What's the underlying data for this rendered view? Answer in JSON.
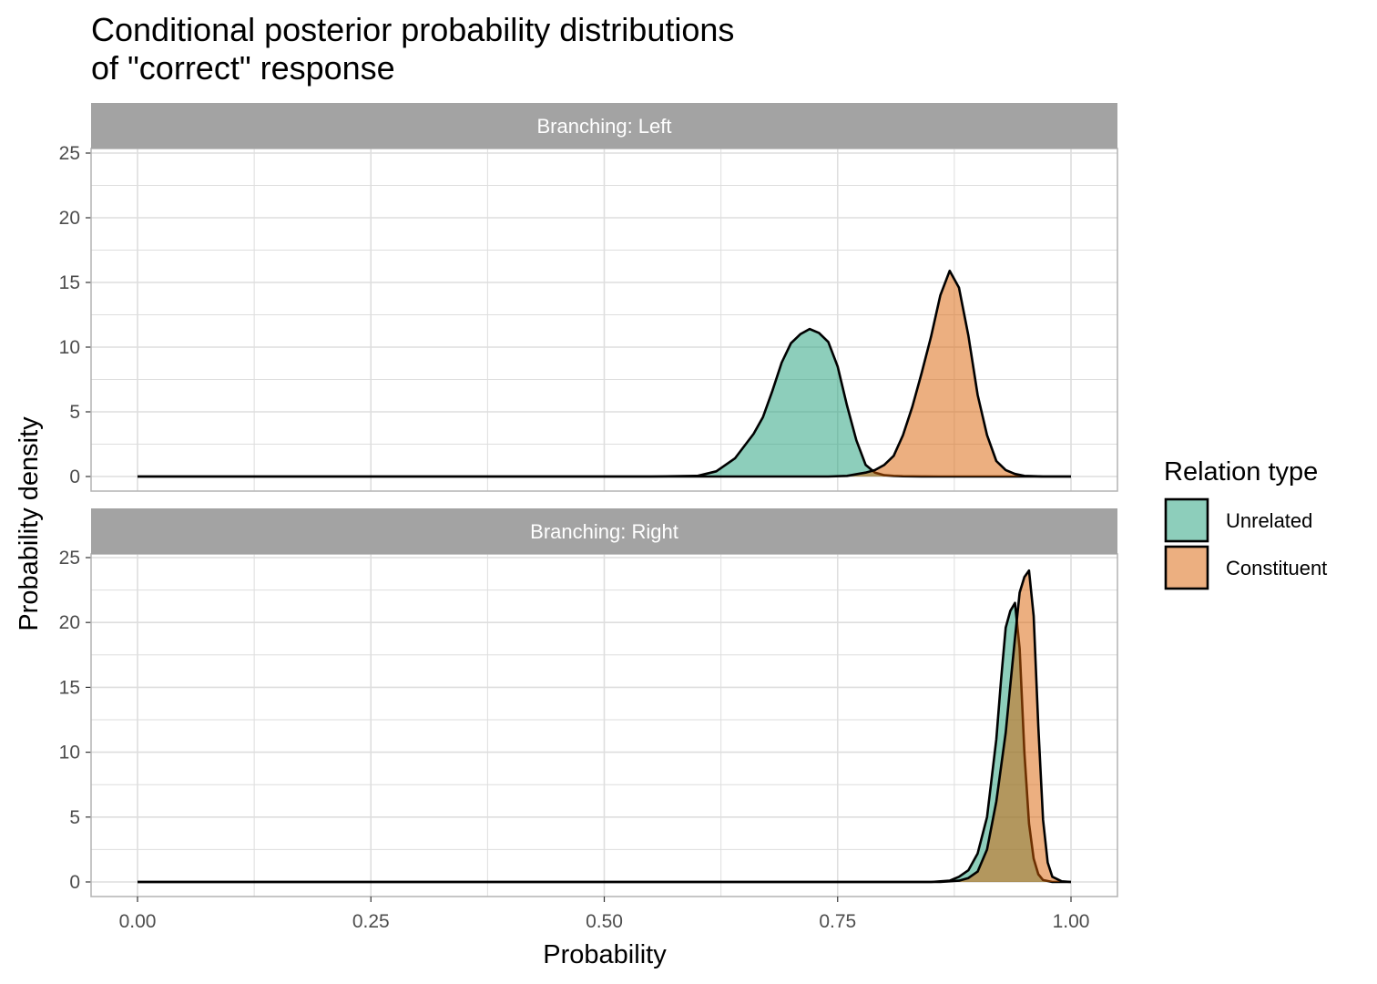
{
  "chart_data": {
    "type": "area",
    "subtype": "density",
    "title": "Conditional posterior probability distributions\nof \"correct\" response",
    "xlabel": "Probability",
    "ylabel": "Probability density",
    "xlim": [
      0,
      1
    ],
    "ylim": [
      0,
      25
    ],
    "x_ticks": [
      "0.00",
      "0.25",
      "0.50",
      "0.75",
      "1.00"
    ],
    "y_ticks": [
      "0",
      "5",
      "10",
      "15",
      "20",
      "25"
    ],
    "grid": true,
    "legend": {
      "title": "Relation type",
      "position": "right",
      "entries": [
        "Unrelated",
        "Constituent"
      ]
    },
    "colors": {
      "Unrelated": "#1b9e77",
      "Constituent": "#d95f02",
      "strip": "#a3a3a3",
      "grid": "#dedede",
      "outline": "#000000"
    },
    "facets": [
      {
        "label": "Branching: Left",
        "series": [
          {
            "name": "Unrelated",
            "x": [
              0.0,
              0.55,
              0.6,
              0.62,
              0.64,
              0.66,
              0.67,
              0.68,
              0.69,
              0.7,
              0.71,
              0.72,
              0.73,
              0.74,
              0.75,
              0.76,
              0.77,
              0.78,
              0.79,
              0.8,
              0.81,
              0.82,
              0.84,
              0.86,
              0.9,
              1.0
            ],
            "y": [
              0,
              0,
              0.05,
              0.4,
              1.4,
              3.3,
              4.6,
              6.6,
              8.8,
              10.3,
              11.0,
              11.4,
              11.1,
              10.4,
              8.5,
              5.5,
              2.8,
              0.9,
              0.3,
              0.1,
              0.05,
              0.02,
              0.01,
              0,
              0,
              0
            ]
          },
          {
            "name": "Constituent",
            "x": [
              0.0,
              0.74,
              0.76,
              0.78,
              0.79,
              0.8,
              0.81,
              0.82,
              0.83,
              0.84,
              0.85,
              0.86,
              0.87,
              0.88,
              0.89,
              0.9,
              0.91,
              0.92,
              0.93,
              0.94,
              0.95,
              0.97,
              1.0
            ],
            "y": [
              0,
              0,
              0.05,
              0.3,
              0.5,
              0.9,
              1.6,
              3.2,
              5.4,
              8.0,
              10.8,
              14.0,
              15.9,
              14.6,
              10.9,
              6.3,
              3.2,
              1.2,
              0.5,
              0.2,
              0.05,
              0,
              0
            ]
          }
        ]
      },
      {
        "label": "Branching: Right",
        "series": [
          {
            "name": "Unrelated",
            "x": [
              0.0,
              0.85,
              0.87,
              0.88,
              0.89,
              0.9,
              0.91,
              0.92,
              0.925,
              0.93,
              0.935,
              0.94,
              0.945,
              0.95,
              0.955,
              0.96,
              0.965,
              0.97,
              0.98,
              1.0
            ],
            "y": [
              0,
              0,
              0.1,
              0.4,
              0.9,
              2.2,
              5.0,
              11.0,
              15.5,
              19.6,
              20.9,
              21.5,
              18.0,
              10.0,
              4.5,
              1.8,
              0.6,
              0.15,
              0,
              0
            ]
          },
          {
            "name": "Constituent",
            "x": [
              0.0,
              0.86,
              0.88,
              0.89,
              0.9,
              0.91,
              0.92,
              0.93,
              0.935,
              0.94,
              0.945,
              0.95,
              0.955,
              0.96,
              0.965,
              0.97,
              0.975,
              0.98,
              0.99,
              1.0
            ],
            "y": [
              0,
              0,
              0.1,
              0.3,
              0.8,
              2.5,
              6.2,
              11.5,
              15.2,
              18.8,
              22.3,
              23.5,
              24.0,
              20.5,
              12.0,
              4.8,
              1.5,
              0.4,
              0.05,
              0
            ]
          }
        ]
      }
    ]
  }
}
